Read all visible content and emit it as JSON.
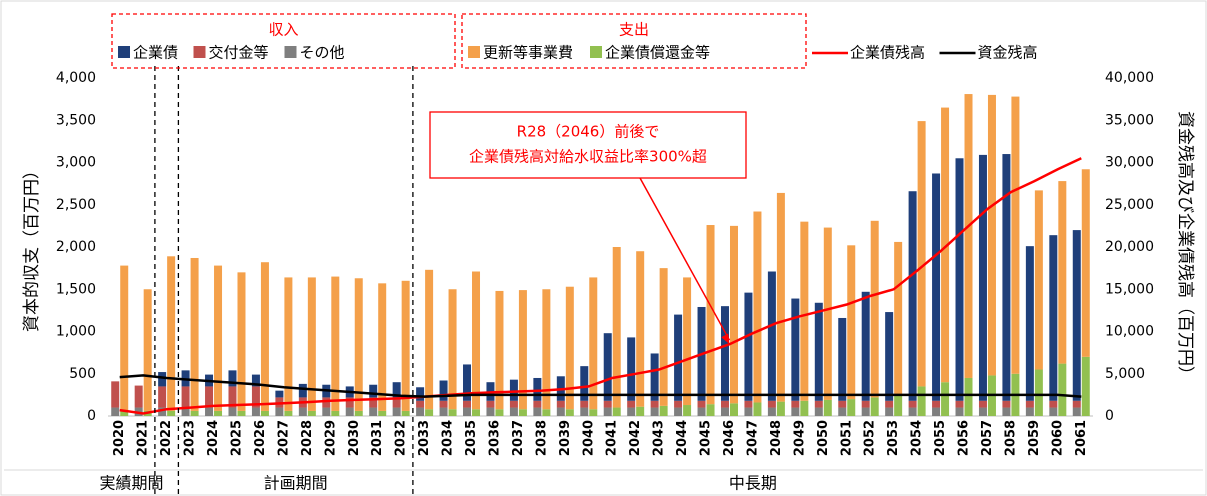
{
  "chart_data": {
    "type": "bar",
    "y_label": "資本的収支（百万円）",
    "y2_label": "資金残高及び企業債残高（百万円）",
    "categories": [
      "2020",
      "2021",
      "2022",
      "2023",
      "2024",
      "2025",
      "2026",
      "2027",
      "2028",
      "2029",
      "2030",
      "2031",
      "2032",
      "2033",
      "2034",
      "2035",
      "2036",
      "2037",
      "2038",
      "2039",
      "2040",
      "2041",
      "2042",
      "2043",
      "2044",
      "2045",
      "2046",
      "2047",
      "2048",
      "2049",
      "2050",
      "2051",
      "2052",
      "2053",
      "2054",
      "2055",
      "2056",
      "2057",
      "2058",
      "2059",
      "2060",
      "2061"
    ],
    "series": [
      {
        "name": "その他",
        "group": "収入",
        "color": "#7f7f7f",
        "values": [
          100,
          100,
          100,
          100,
          100,
          100,
          100,
          100,
          100,
          100,
          100,
          100,
          100,
          100,
          100,
          100,
          100,
          100,
          100,
          100,
          100,
          100,
          100,
          100,
          100,
          100,
          100,
          100,
          100,
          100,
          100,
          100,
          100,
          100,
          100,
          100,
          100,
          100,
          100,
          100,
          100,
          100
        ]
      },
      {
        "name": "交付金等",
        "group": "収入",
        "color": "#c0504d",
        "values": [
          310,
          260,
          250,
          250,
          250,
          250,
          250,
          120,
          120,
          120,
          120,
          120,
          120,
          80,
          80,
          80,
          80,
          80,
          80,
          80,
          80,
          80,
          80,
          80,
          80,
          80,
          80,
          80,
          80,
          80,
          80,
          80,
          80,
          80,
          80,
          80,
          80,
          80,
          80,
          80,
          80,
          80
        ]
      },
      {
        "name": "企業債",
        "group": "収入",
        "color": "#1f3f7a",
        "values": [
          0,
          0,
          170,
          190,
          140,
          190,
          140,
          80,
          160,
          150,
          130,
          150,
          180,
          160,
          240,
          430,
          220,
          250,
          270,
          290,
          410,
          800,
          750,
          560,
          1020,
          1110,
          1120,
          1280,
          1530,
          1210,
          1160,
          980,
          1290,
          1050,
          2480,
          2690,
          2870,
          2910,
          2920,
          1830,
          1960,
          2020
        ]
      },
      {
        "name": "企業債償還金等",
        "group": "支出",
        "color": "#92c050",
        "values": [
          60,
          60,
          60,
          60,
          60,
          60,
          60,
          60,
          60,
          60,
          60,
          60,
          60,
          80,
          80,
          80,
          80,
          80,
          80,
          80,
          80,
          100,
          110,
          120,
          130,
          140,
          150,
          160,
          170,
          180,
          190,
          200,
          220,
          240,
          350,
          400,
          450,
          480,
          500,
          550,
          620,
          700
        ]
      },
      {
        "name": "更新等事業費",
        "group": "支出",
        "color": "#f4a04a",
        "values": [
          1720,
          1440,
          1830,
          1810,
          1720,
          1640,
          1760,
          1580,
          1580,
          1590,
          1570,
          1510,
          1540,
          1650,
          1420,
          1630,
          1400,
          1410,
          1420,
          1450,
          1560,
          1900,
          1840,
          1630,
          1510,
          2120,
          2100,
          2260,
          2470,
          2120,
          2040,
          1820,
          2090,
          1820,
          3140,
          3250,
          3360,
          3320,
          3280,
          2120,
          2160,
          2220
        ]
      },
      {
        "name": "企業債残高",
        "type": "line",
        "axis": "y2",
        "color": "#ff0000",
        "values": [
          700,
          300,
          800,
          1000,
          1200,
          1300,
          1400,
          1500,
          1650,
          1800,
          1900,
          2000,
          2100,
          2300,
          2500,
          2700,
          2800,
          2900,
          3000,
          3200,
          3500,
          4500,
          5000,
          5500,
          6500,
          7500,
          8500,
          9800,
          11000,
          11800,
          12500,
          13200,
          14200,
          15000,
          17200,
          19500,
          22000,
          24500,
          26500,
          27800,
          29200,
          30500
        ]
      },
      {
        "name": "資金残高",
        "type": "line",
        "axis": "y2",
        "color": "#000000",
        "values": [
          4600,
          4800,
          4500,
          4300,
          4100,
          3900,
          3700,
          3400,
          3200,
          3000,
          2800,
          2600,
          2400,
          2300,
          2400,
          2500,
          2500,
          2500,
          2500,
          2500,
          2500,
          2500,
          2500,
          2500,
          2500,
          2500,
          2500,
          2500,
          2500,
          2500,
          2500,
          2500,
          2500,
          2500,
          2500,
          2500,
          2500,
          2500,
          2500,
          2500,
          2500,
          2300
        ]
      }
    ],
    "legend_groups": [
      "収入",
      "支出"
    ],
    "ylim": [
      0,
      4000
    ],
    "yticks": [
      0,
      500,
      {
        "value": 1000,
        "label": "1,000"
      },
      {
        "value": 1500,
        "label": "1,500"
      },
      {
        "value": 2000,
        "label": "2,000"
      },
      {
        "value": 2500,
        "label": "2,500"
      },
      {
        "value": 3000,
        "label": "3,000"
      },
      {
        "value": 3500,
        "label": "3,500"
      },
      {
        "value": 4000,
        "label": "4,000"
      }
    ],
    "y2lim": [
      0,
      40000
    ],
    "y2ticks": [
      0,
      {
        "value": 5000,
        "label": "5,000"
      },
      {
        "value": 10000,
        "label": "10,000"
      },
      {
        "value": 15000,
        "label": "15,000"
      },
      {
        "value": 20000,
        "label": "20,000"
      },
      {
        "value": 25000,
        "label": "25,000"
      },
      {
        "value": 30000,
        "label": "30,000"
      },
      {
        "value": 35000,
        "label": "35,000"
      },
      {
        "value": 40000,
        "label": "40,000"
      }
    ],
    "periods": [
      {
        "label": "実績期間",
        "start": "2020",
        "end": "2021"
      },
      {
        "label": "計画期間",
        "start": "2023",
        "end": "2032"
      },
      {
        "label": "中長期",
        "start": "2033",
        "end": "2061"
      }
    ],
    "annotation": {
      "lines": [
        "R28（2046）前後で",
        "企業債残高対給水収益比率300%超"
      ],
      "target": "2046"
    }
  }
}
